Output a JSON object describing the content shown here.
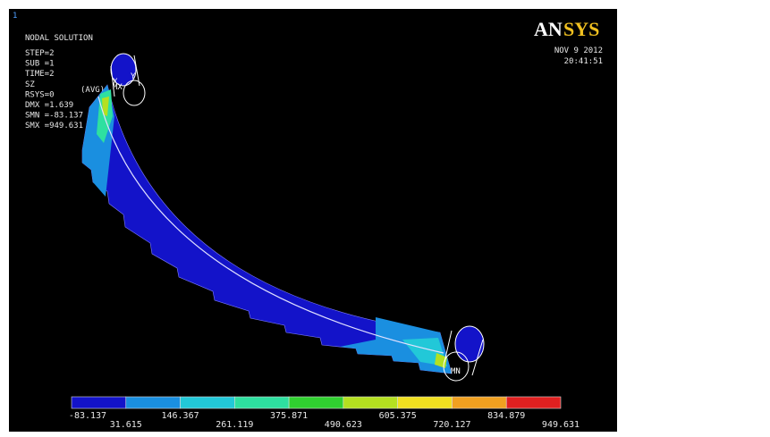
{
  "window_number": "1",
  "info": {
    "title": "NODAL SOLUTION",
    "lines": [
      "STEP=2",
      "SUB =1",
      "TIME=2",
      "SZ",
      "RSYS=0",
      "DMX =1.639",
      "SMN =-83.137",
      "SMX =949.631"
    ],
    "avg": "(AVG)"
  },
  "logo": {
    "an": "AN",
    "sys": "SYS"
  },
  "date": "NOV  9 2012",
  "time": "20:41:51",
  "axes": {
    "x": "X",
    "y": "Y"
  },
  "markers": {
    "max": "MX",
    "min": "MN"
  },
  "legend": {
    "colors": [
      "#1313c9",
      "#1a8fe0",
      "#22c8d8",
      "#2ee0a0",
      "#30d030",
      "#b4e020",
      "#f0e020",
      "#f0a020",
      "#e02020"
    ],
    "labels": [
      "-83.137",
      "31.615",
      "146.367",
      "261.119",
      "375.871",
      "490.623",
      "605.375",
      "720.127",
      "834.879",
      "949.631"
    ]
  }
}
